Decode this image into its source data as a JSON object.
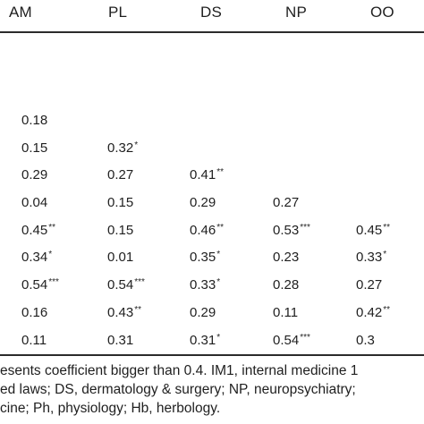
{
  "table": {
    "headers": [
      "AM",
      "PL",
      "DS",
      "NP",
      "OO"
    ],
    "rows": [
      [
        {
          "v": "0.18",
          "s": ""
        }
      ],
      [
        {
          "v": "0.15",
          "s": ""
        },
        {
          "v": "0.32",
          "s": "*"
        }
      ],
      [
        {
          "v": "0.29",
          "s": ""
        },
        {
          "v": "0.27",
          "s": ""
        },
        {
          "v": "0.41",
          "s": "**"
        }
      ],
      [
        {
          "v": "0.04",
          "s": ""
        },
        {
          "v": "0.15",
          "s": ""
        },
        {
          "v": "0.29",
          "s": ""
        },
        {
          "v": "0.27",
          "s": ""
        }
      ],
      [
        {
          "v": "0.45",
          "s": "**"
        },
        {
          "v": "0.15",
          "s": ""
        },
        {
          "v": "0.46",
          "s": "**"
        },
        {
          "v": "0.53",
          "s": "***"
        },
        {
          "v": "0.45",
          "s": "**"
        }
      ],
      [
        {
          "v": "0.34",
          "s": "*"
        },
        {
          "v": "0.01",
          "s": ""
        },
        {
          "v": "0.35",
          "s": "*"
        },
        {
          "v": "0.23",
          "s": ""
        },
        {
          "v": "0.33",
          "s": "*"
        }
      ],
      [
        {
          "v": "0.54",
          "s": "***"
        },
        {
          "v": "0.54",
          "s": "***"
        },
        {
          "v": "0.33",
          "s": "*"
        },
        {
          "v": "0.28",
          "s": ""
        },
        {
          "v": "0.27",
          "s": ""
        }
      ],
      [
        {
          "v": "0.16",
          "s": ""
        },
        {
          "v": "0.43",
          "s": "**"
        },
        {
          "v": "0.29",
          "s": ""
        },
        {
          "v": "0.11",
          "s": ""
        },
        {
          "v": "0.42",
          "s": "**"
        }
      ],
      [
        {
          "v": "0.11",
          "s": ""
        },
        {
          "v": "0.31",
          "s": ""
        },
        {
          "v": "0.31",
          "s": "*"
        },
        {
          "v": "0.54",
          "s": "***"
        },
        {
          "v": "0.3",
          "s": ""
        }
      ]
    ]
  },
  "footnote": {
    "line1": "esents coefficient bigger than 0.4. IM1, internal medicine 1",
    "line2": "ed laws; DS, dermatology & surgery; NP, neuropsychiatry;",
    "line3": "cine; Ph, physiology; Hb, herbology."
  }
}
